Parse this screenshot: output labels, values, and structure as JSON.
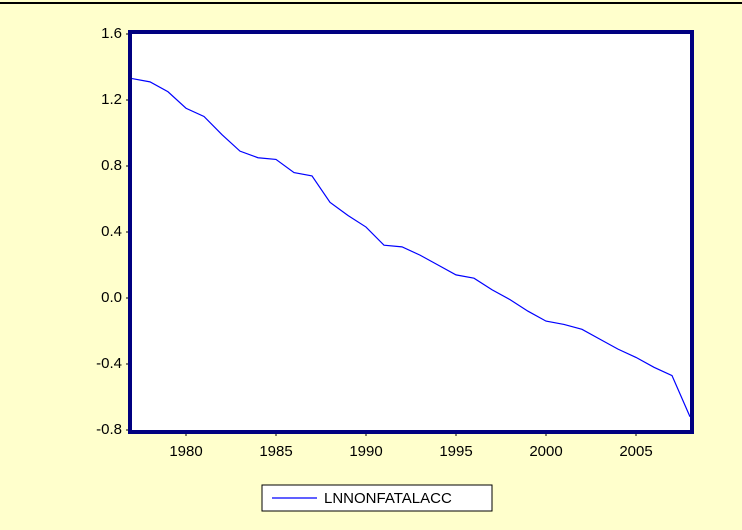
{
  "chart_data": {
    "type": "line",
    "x": [
      1977,
      1978,
      1979,
      1980,
      1981,
      1982,
      1983,
      1984,
      1985,
      1986,
      1987,
      1988,
      1989,
      1990,
      1991,
      1992,
      1993,
      1994,
      1995,
      1996,
      1997,
      1998,
      1999,
      2000,
      2001,
      2002,
      2003,
      2004,
      2005,
      2006,
      2007,
      2008
    ],
    "series": [
      {
        "name": "LNNONFATALACC",
        "color": "#0000ff",
        "values": [
          1.33,
          1.31,
          1.25,
          1.15,
          1.1,
          0.99,
          0.89,
          0.85,
          0.84,
          0.76,
          0.74,
          0.58,
          0.5,
          0.43,
          0.32,
          0.31,
          0.26,
          0.2,
          0.14,
          0.12,
          0.05,
          -0.01,
          -0.08,
          -0.14,
          -0.16,
          -0.19,
          -0.25,
          -0.31,
          -0.36,
          -0.42,
          -0.47,
          -0.72
        ]
      }
    ],
    "xlim": [
      1977,
      2008
    ],
    "xticks": [
      1980,
      1985,
      1990,
      1995,
      2000,
      2005
    ],
    "ylim": [
      -0.8,
      1.6
    ],
    "yticks": [
      -0.8,
      -0.4,
      {
        "value": 0,
        "label": "0.0"
      },
      0.4,
      0.8,
      1.2,
      1.6
    ],
    "grid": false,
    "legend": "bottom"
  }
}
